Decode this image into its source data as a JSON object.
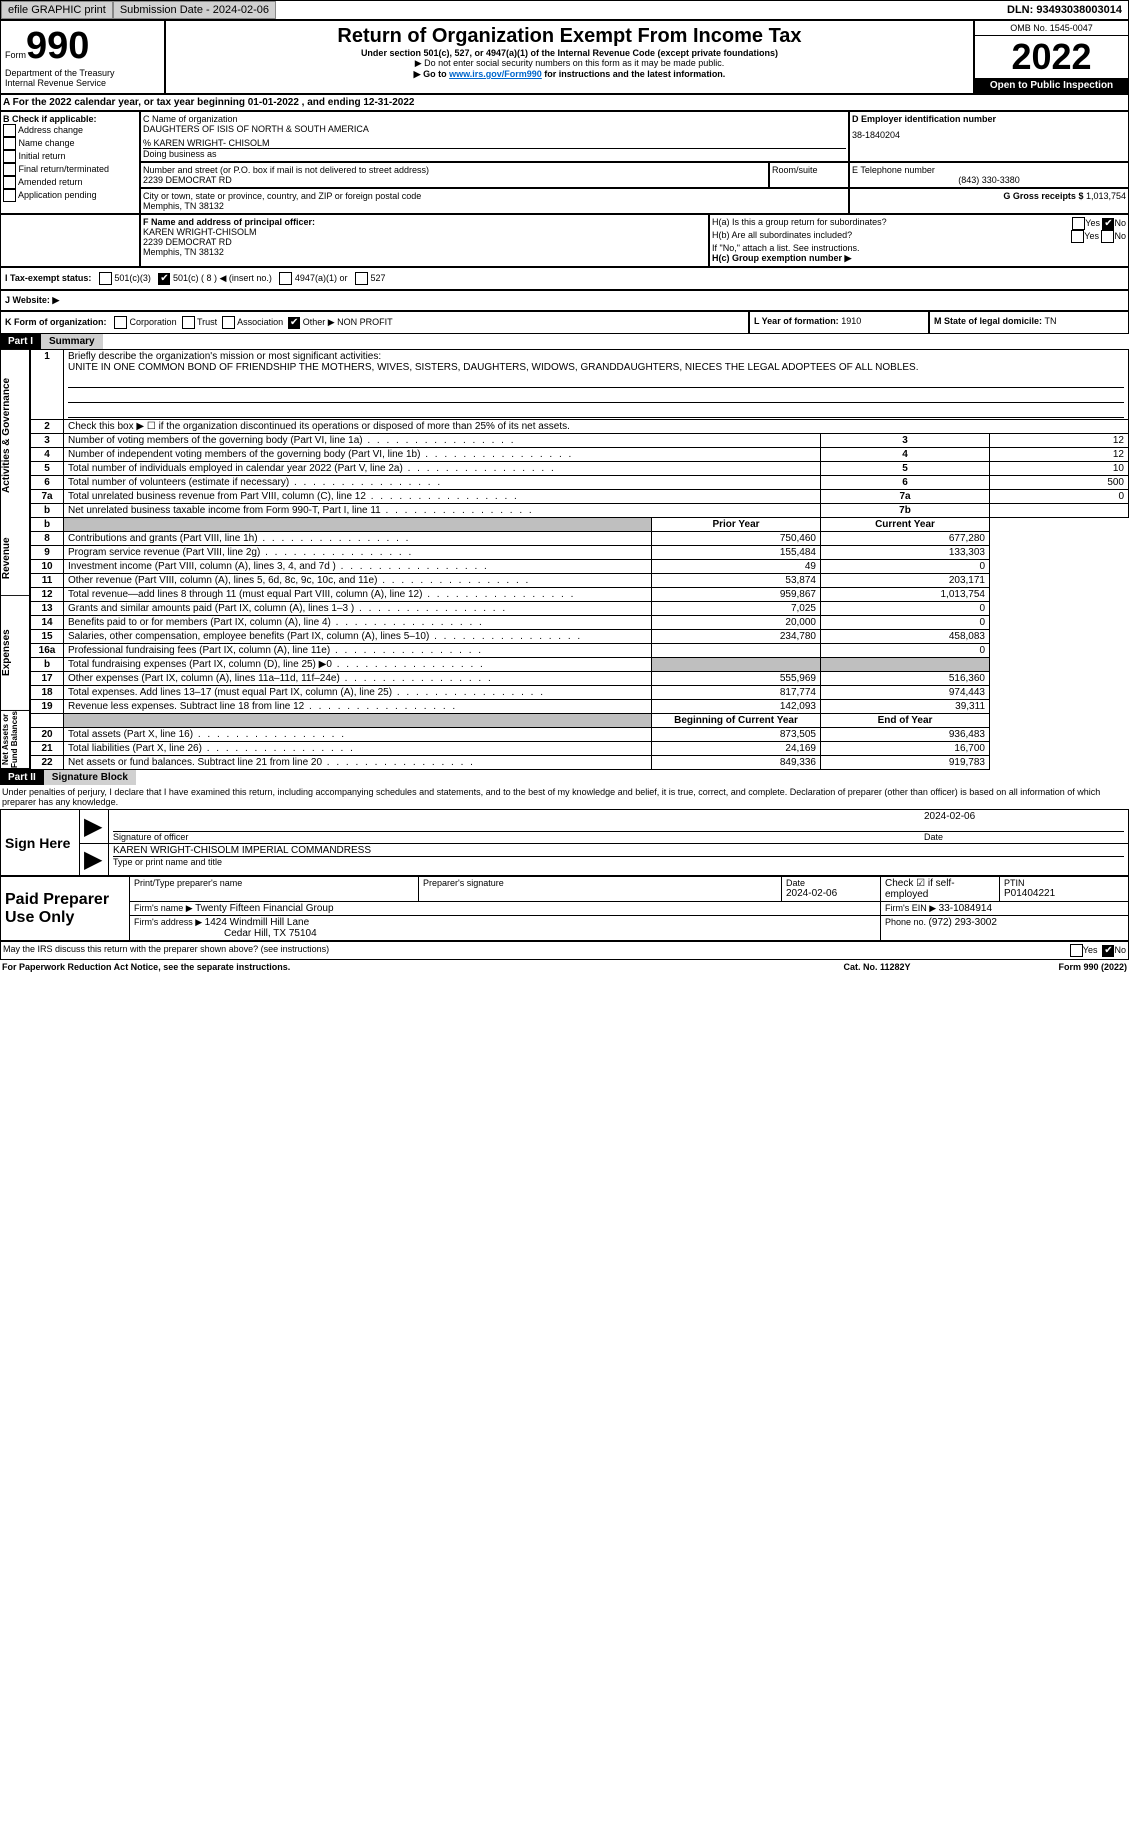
{
  "topbar": {
    "efile": "efile GRAPHIC print",
    "subdate_label": "Submission Date - ",
    "subdate": "2024-02-06",
    "dln_label": "DLN: ",
    "dln": "93493038003014"
  },
  "header": {
    "form_label": "Form",
    "form_num": "990",
    "dept": "Department of the Treasury",
    "irs": "Internal Revenue Service",
    "title": "Return of Organization Exempt From Income Tax",
    "subtitle": "Under section 501(c), 527, or 4947(a)(1) of the Internal Revenue Code (except private foundations)",
    "ssn_note": "▶ Do not enter social security numbers on this form as it may be made public.",
    "goto": "▶ Go to ",
    "goto_link": "www.irs.gov/Form990",
    "goto_after": " for instructions and the latest information.",
    "omb": "OMB No. 1545-0047",
    "year": "2022",
    "open": "Open to Public Inspection"
  },
  "a_line": {
    "text": "A For the 2022 calendar year, or tax year beginning ",
    "begin": "01-01-2022",
    "mid": " , and ending ",
    "end": "12-31-2022"
  },
  "b": {
    "label": "B Check if applicable:",
    "items": [
      "Address change",
      "Name change",
      "Initial return",
      "Final return/terminated",
      "Amended return",
      "Application pending"
    ]
  },
  "c": {
    "label": "C Name of organization",
    "name": "DAUGHTERS OF ISIS OF NORTH & SOUTH AMERICA",
    "care_of": "% KAREN WRIGHT- CHISOLM",
    "dba_label": "Doing business as",
    "street_label": "Number and street (or P.O. box if mail is not delivered to street address)",
    "room_label": "Room/suite",
    "street": "2239 DEMOCRAT RD",
    "city_label": "City or town, state or province, country, and ZIP or foreign postal code",
    "city": "Memphis, TN  38132"
  },
  "d": {
    "label": "D Employer identification number",
    "value": "38-1840204"
  },
  "e": {
    "label": "E Telephone number",
    "value": "(843) 330-3380"
  },
  "g": {
    "label": "G Gross receipts $ ",
    "value": "1,013,754"
  },
  "f": {
    "label": "F Name and address of principal officer:",
    "name": "KAREN WRIGHT-CHISOLM",
    "street": "2239 DEMOCRAT RD",
    "city": "Memphis, TN  38132"
  },
  "h": {
    "ha": "H(a) Is this a group return for subordinates?",
    "hb": "H(b) Are all subordinates included?",
    "hnote": "If \"No,\" attach a list. See instructions.",
    "hc": "H(c) Group exemption number ▶",
    "yes": "Yes",
    "no": "No"
  },
  "i": {
    "label": "I   Tax-exempt status:",
    "opt1": "501(c)(3)",
    "opt2": "501(c) ( 8 ) ◀ (insert no.)",
    "opt3": "4947(a)(1) or",
    "opt4": "527"
  },
  "j": {
    "label": "J   Website: ▶"
  },
  "k": {
    "label": "K Form of organization:",
    "opts": [
      "Corporation",
      "Trust",
      "Association",
      "Other ▶"
    ],
    "other": "NON PROFIT"
  },
  "l": {
    "label": "L Year of formation: ",
    "value": "1910"
  },
  "m": {
    "label": "M State of legal domicile: ",
    "value": "TN"
  },
  "part1": {
    "num": "Part I",
    "title": "Summary"
  },
  "summary": {
    "line1_label": "Briefly describe the organization's mission or most significant activities:",
    "line1_text": "UNITE IN ONE COMMON BOND OF FRIENDSHIP THE MOTHERS, WIVES, SISTERS, DAUGHTERS, WIDOWS, GRANDDAUGHTERS, NIECES THE LEGAL ADOPTEES OF ALL NOBLES.",
    "line2": "Check this box ▶ ☐ if the organization discontinued its operations or disposed of more than 25% of its net assets.",
    "rows": [
      {
        "n": "3",
        "t": "Number of voting members of the governing body (Part VI, line 1a)",
        "lab": "3",
        "v": "12"
      },
      {
        "n": "4",
        "t": "Number of independent voting members of the governing body (Part VI, line 1b)",
        "lab": "4",
        "v": "12"
      },
      {
        "n": "5",
        "t": "Total number of individuals employed in calendar year 2022 (Part V, line 2a)",
        "lab": "5",
        "v": "10"
      },
      {
        "n": "6",
        "t": "Total number of volunteers (estimate if necessary)",
        "lab": "6",
        "v": "500"
      },
      {
        "n": "7a",
        "t": "Total unrelated business revenue from Part VIII, column (C), line 12",
        "lab": "7a",
        "v": "0"
      },
      {
        "n": "b",
        "t": "Net unrelated business taxable income from Form 990-T, Part I, line 11",
        "lab": "7b",
        "v": ""
      }
    ],
    "prior_label": "Prior Year",
    "current_label": "Current Year",
    "rev_rows": [
      {
        "n": "8",
        "t": "Contributions and grants (Part VIII, line 1h)",
        "p": "750,460",
        "c": "677,280"
      },
      {
        "n": "9",
        "t": "Program service revenue (Part VIII, line 2g)",
        "p": "155,484",
        "c": "133,303"
      },
      {
        "n": "10",
        "t": "Investment income (Part VIII, column (A), lines 3, 4, and 7d )",
        "p": "49",
        "c": "0"
      },
      {
        "n": "11",
        "t": "Other revenue (Part VIII, column (A), lines 5, 6d, 8c, 9c, 10c, and 11e)",
        "p": "53,874",
        "c": "203,171"
      },
      {
        "n": "12",
        "t": "Total revenue—add lines 8 through 11 (must equal Part VIII, column (A), line 12)",
        "p": "959,867",
        "c": "1,013,754"
      }
    ],
    "exp_rows": [
      {
        "n": "13",
        "t": "Grants and similar amounts paid (Part IX, column (A), lines 1–3 )",
        "p": "7,025",
        "c": "0"
      },
      {
        "n": "14",
        "t": "Benefits paid to or for members (Part IX, column (A), line 4)",
        "p": "20,000",
        "c": "0"
      },
      {
        "n": "15",
        "t": "Salaries, other compensation, employee benefits (Part IX, column (A), lines 5–10)",
        "p": "234,780",
        "c": "458,083"
      },
      {
        "n": "16a",
        "t": "Professional fundraising fees (Part IX, column (A), line 11e)",
        "p": "",
        "c": "0"
      },
      {
        "n": "b",
        "t": "Total fundraising expenses (Part IX, column (D), line 25) ▶0",
        "p": "SHADE",
        "c": "SHADE"
      },
      {
        "n": "17",
        "t": "Other expenses (Part IX, column (A), lines 11a–11d, 11f–24e)",
        "p": "555,969",
        "c": "516,360"
      },
      {
        "n": "18",
        "t": "Total expenses. Add lines 13–17 (must equal Part IX, column (A), line 25)",
        "p": "817,774",
        "c": "974,443"
      },
      {
        "n": "19",
        "t": "Revenue less expenses. Subtract line 18 from line 12",
        "p": "142,093",
        "c": "39,311"
      }
    ],
    "na_begin": "Beginning of Current Year",
    "na_end": "End of Year",
    "na_rows": [
      {
        "n": "20",
        "t": "Total assets (Part X, line 16)",
        "p": "873,505",
        "c": "936,483"
      },
      {
        "n": "21",
        "t": "Total liabilities (Part X, line 26)",
        "p": "24,169",
        "c": "16,700"
      },
      {
        "n": "22",
        "t": "Net assets or fund balances. Subtract line 21 from line 20",
        "p": "849,336",
        "c": "919,783"
      }
    ],
    "sections": [
      "Activities & Governance",
      "Revenue",
      "Expenses",
      "Net Assets or Fund Balances"
    ]
  },
  "part2": {
    "num": "Part II",
    "title": "Signature Block"
  },
  "penalties": "Under penalties of perjury, I declare that I have examined this return, including accompanying schedules and statements, and to the best of my knowledge and belief, it is true, correct, and complete. Declaration of preparer (other than officer) is based on all information of which preparer has any knowledge.",
  "sign": {
    "label": "Sign Here",
    "sig_officer": "Signature of officer",
    "date": "2024-02-06",
    "date_label": "Date",
    "typed": "KAREN WRIGHT-CHISOLM IMPERIAL COMMANDRESS",
    "typed_label": "Type or print name and title"
  },
  "preparer": {
    "label": "Paid Preparer Use Only",
    "print_label": "Print/Type preparer's name",
    "sig_label": "Preparer's signature",
    "date_label": "Date",
    "date": "2024-02-06",
    "self_label": "Check ☑ if self-employed",
    "ptin_label": "PTIN",
    "ptin": "P01404221",
    "firm_name_label": "Firm's name   ▶ ",
    "firm_name": "Twenty Fifteen Financial Group",
    "ein_label": "Firm's EIN ▶ ",
    "ein": "33-1084914",
    "addr_label": "Firm's address ▶ ",
    "addr1": "1424 Windmill Hill Lane",
    "addr2": "Cedar Hill, TX  75104",
    "phone_label": "Phone no. ",
    "phone": "(972) 293-3002"
  },
  "footer": {
    "discuss": "May the IRS discuss this return with the preparer shown above? (see instructions)",
    "yes": "Yes",
    "no": "No",
    "paperwork": "For Paperwork Reduction Act Notice, see the separate instructions.",
    "cat": "Cat. No. 11282Y",
    "form": "Form 990 (2022)"
  }
}
